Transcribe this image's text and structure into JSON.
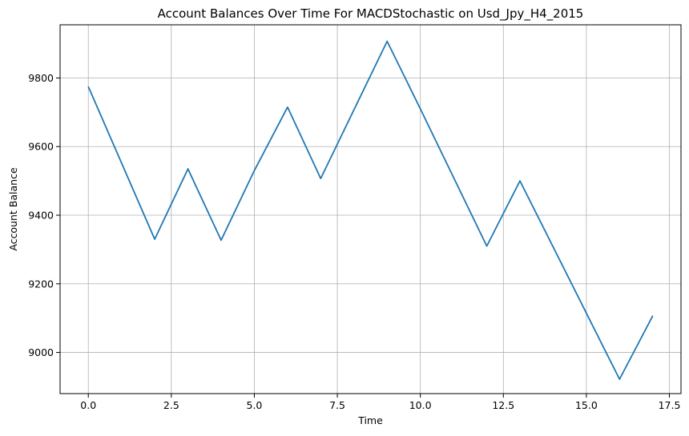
{
  "chart_data": {
    "type": "line",
    "title": "Account Balances Over Time For MACDStochastic on Usd_Jpy_H4_2015",
    "xlabel": "Time",
    "ylabel": "Account Balance",
    "xlim": [
      -0.85,
      17.85
    ],
    "ylim": [
      8880,
      9955
    ],
    "xticks": [
      0.0,
      2.5,
      5.0,
      7.5,
      10.0,
      12.5,
      15.0,
      17.5
    ],
    "xtick_labels": [
      "0.0",
      "2.5",
      "5.0",
      "7.5",
      "10.0",
      "12.5",
      "15.0",
      "17.5"
    ],
    "yticks": [
      9000,
      9200,
      9400,
      9600,
      9800
    ],
    "ytick_labels": [
      "9000",
      "9200",
      "9400",
      "9600",
      "9800"
    ],
    "grid": true,
    "line_color": "#1f77b4",
    "grid_color": "#b0b0b0",
    "series": [
      {
        "x": [
          0,
          2,
          3,
          4,
          5,
          6,
          7,
          9,
          10,
          12,
          13,
          16,
          17
        ],
        "values": [
          9775,
          9330,
          9535,
          9327,
          9530,
          9715,
          9507,
          9907,
          9710,
          9310,
          9500,
          8922,
          9107
        ]
      }
    ]
  }
}
